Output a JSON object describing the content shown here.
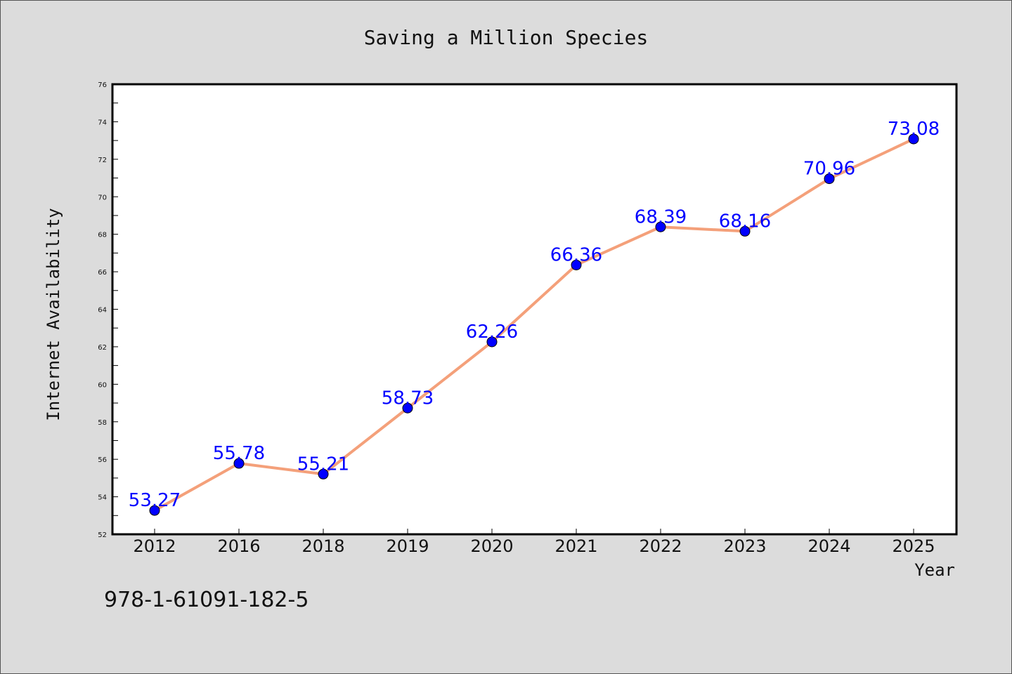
{
  "footnote": "978-1-61091-182-5",
  "colors": {
    "background": "#dcdcdc",
    "plot_bg": "#ffffff",
    "line": "#f4a07a",
    "marker": "#0000ff",
    "label": "#0000ff"
  },
  "chart_data": {
    "type": "line",
    "title": "Saving a Million Species",
    "xlabel": "Year",
    "ylabel": "Internet Availability",
    "categories": [
      "2012",
      "2016",
      "2018",
      "2019",
      "2020",
      "2021",
      "2022",
      "2023",
      "2024",
      "2025"
    ],
    "series": [
      {
        "values": [
          53.27,
          55.78,
          55.21,
          58.73,
          62.26,
          66.36,
          68.39,
          68.16,
          70.96,
          73.08
        ]
      }
    ],
    "data_labels": [
      "53.27",
      "55.78",
      "55.21",
      "58.73",
      "62.26",
      "66.36",
      "68.39",
      "68.16",
      "70.96",
      "73.08"
    ],
    "ylim": [
      52,
      76
    ],
    "yticks": [
      52,
      54,
      56,
      58,
      60,
      62,
      64,
      66,
      68,
      70,
      72,
      74,
      76
    ],
    "grid": false,
    "legend": "none"
  }
}
